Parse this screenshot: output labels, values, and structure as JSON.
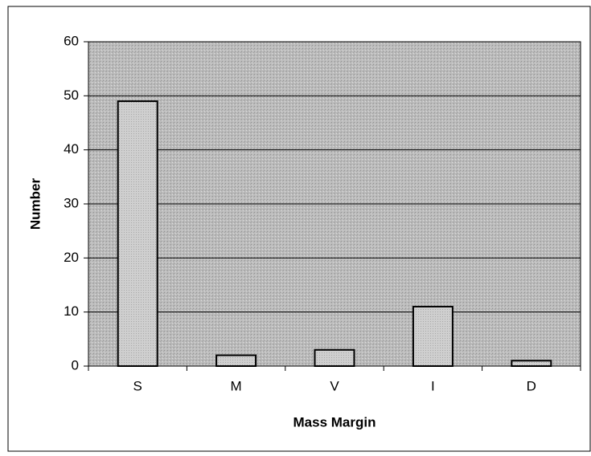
{
  "chart_data": {
    "type": "bar",
    "categories": [
      "S",
      "M",
      "V",
      "I",
      "D"
    ],
    "values": [
      49,
      2,
      3,
      11,
      1
    ],
    "color": "#cfcfcf",
    "ylim": [
      0,
      60
    ],
    "yticks": [
      0,
      10,
      20,
      30,
      40,
      50,
      60
    ],
    "grid": true,
    "xlabel": "Mass Margin",
    "ylabel": "Number"
  }
}
